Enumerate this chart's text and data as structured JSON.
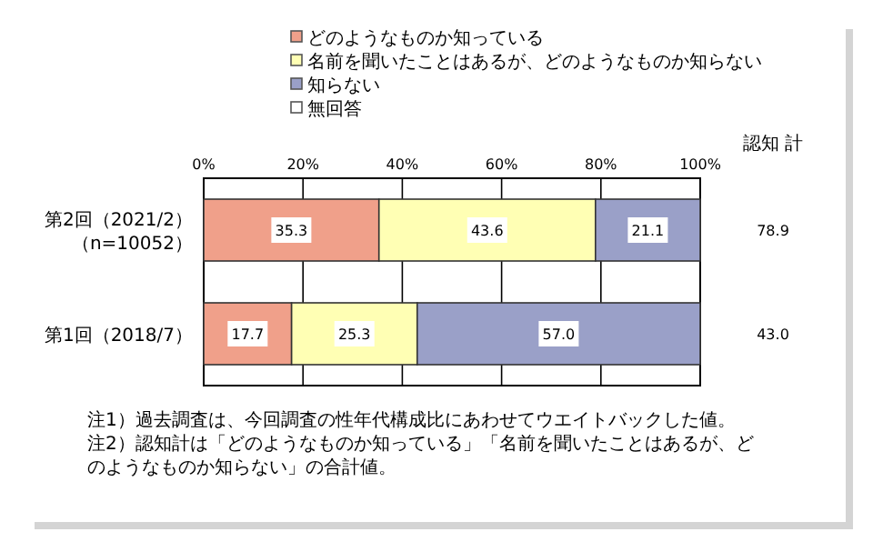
{
  "chart_data": {
    "type": "bar",
    "orientation": "horizontal",
    "stacked": true,
    "categories": [
      "第2回（2021/2）（n=10052）",
      "第1回（2018/7）"
    ],
    "series": [
      {
        "name": "どのようなものか知っている",
        "color": "#f0a08a",
        "values": [
          35.3,
          17.7
        ],
        "value_labels": [
          "35.3",
          "17.7"
        ]
      },
      {
        "name": "名前を聞いたことはあるが、どのようなものか知らない",
        "color": "#ffffb4",
        "values": [
          43.6,
          25.3
        ],
        "value_labels": [
          "43.6",
          "25.3"
        ]
      },
      {
        "name": "知らない",
        "color": "#9aa0c8",
        "values": [
          21.1,
          57.0
        ],
        "value_labels": [
          "21.1",
          "57.0"
        ]
      },
      {
        "name": "無回答",
        "color": "#ffffff",
        "values": [
          0,
          0
        ],
        "value_labels": [
          null,
          null
        ]
      }
    ],
    "xlim": [
      0,
      100
    ],
    "xticks": [
      {
        "value": 0,
        "label": "0%"
      },
      {
        "value": 20,
        "label": "20%"
      },
      {
        "value": 40,
        "label": "40%"
      },
      {
        "value": 60,
        "label": "60%"
      },
      {
        "value": 80,
        "label": "80%"
      },
      {
        "value": 100,
        "label": "100%"
      }
    ],
    "grid": "x",
    "legend": "top",
    "annotations": [
      "認知 計",
      "78.9",
      "43.0",
      "注1）過去調査は、今回調査の性年代構成比にあわせてウエイトバックした値。",
      "注2）認知計は「どのようなものか知っている」「名前を聞いたことはあるが、どのようなものか知らない」の合計値。"
    ]
  }
}
